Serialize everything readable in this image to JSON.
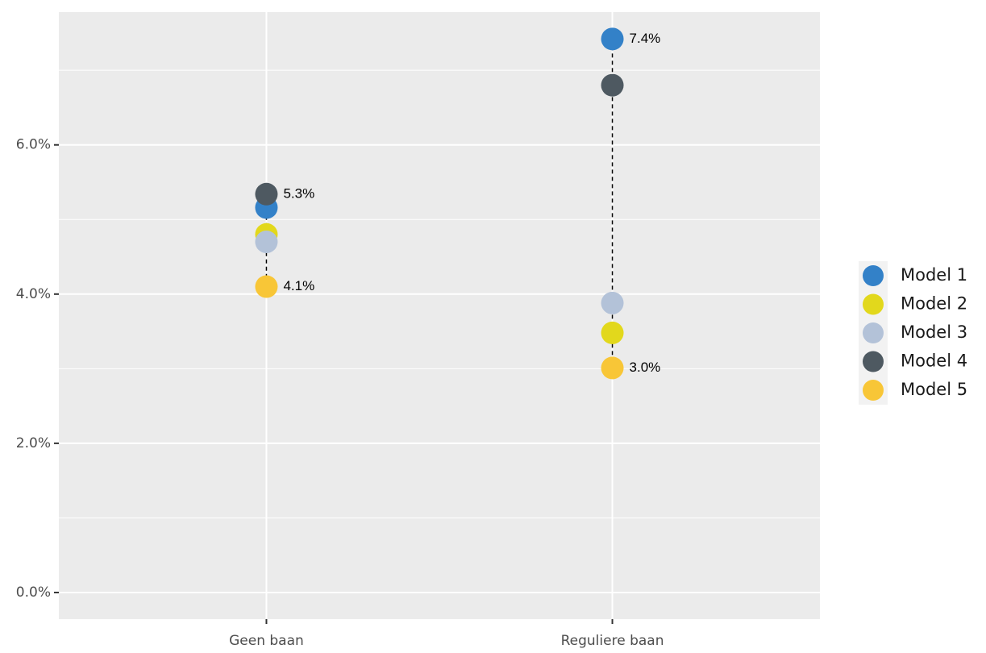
{
  "chart_data": {
    "type": "dot",
    "categories": [
      "Geen baan",
      "Reguliere baan"
    ],
    "series": [
      {
        "name": "Model 1",
        "color": "#3381c8",
        "values": [
          5.16,
          7.42
        ],
        "value_labels": [
          null,
          "7.4%"
        ]
      },
      {
        "name": "Model 2",
        "color": "#e2d81c",
        "values": [
          4.8,
          3.48
        ],
        "value_labels": [
          null,
          null
        ]
      },
      {
        "name": "Model 3",
        "color": "#b3c2d8",
        "values": [
          4.7,
          3.88
        ],
        "value_labels": [
          null,
          null
        ]
      },
      {
        "name": "Model 4",
        "color": "#4e5961",
        "values": [
          5.34,
          6.8
        ],
        "value_labels": [
          "5.3%",
          null
        ]
      },
      {
        "name": "Model 5",
        "color": "#f8c637",
        "values": [
          4.1,
          3.01
        ],
        "value_labels": [
          "4.1%",
          "3.0%"
        ]
      }
    ],
    "ylim": [
      -0.357,
      7.78
    ],
    "yticks": [
      {
        "value": 0,
        "label": "0.0%"
      },
      {
        "value": 2,
        "label": "2.0%"
      },
      {
        "value": 4,
        "label": "4.0%"
      },
      {
        "value": 6,
        "label": "6.0%"
      }
    ],
    "minor_yticks": [
      1,
      3,
      5,
      7
    ],
    "grid": true,
    "legend": "right"
  }
}
